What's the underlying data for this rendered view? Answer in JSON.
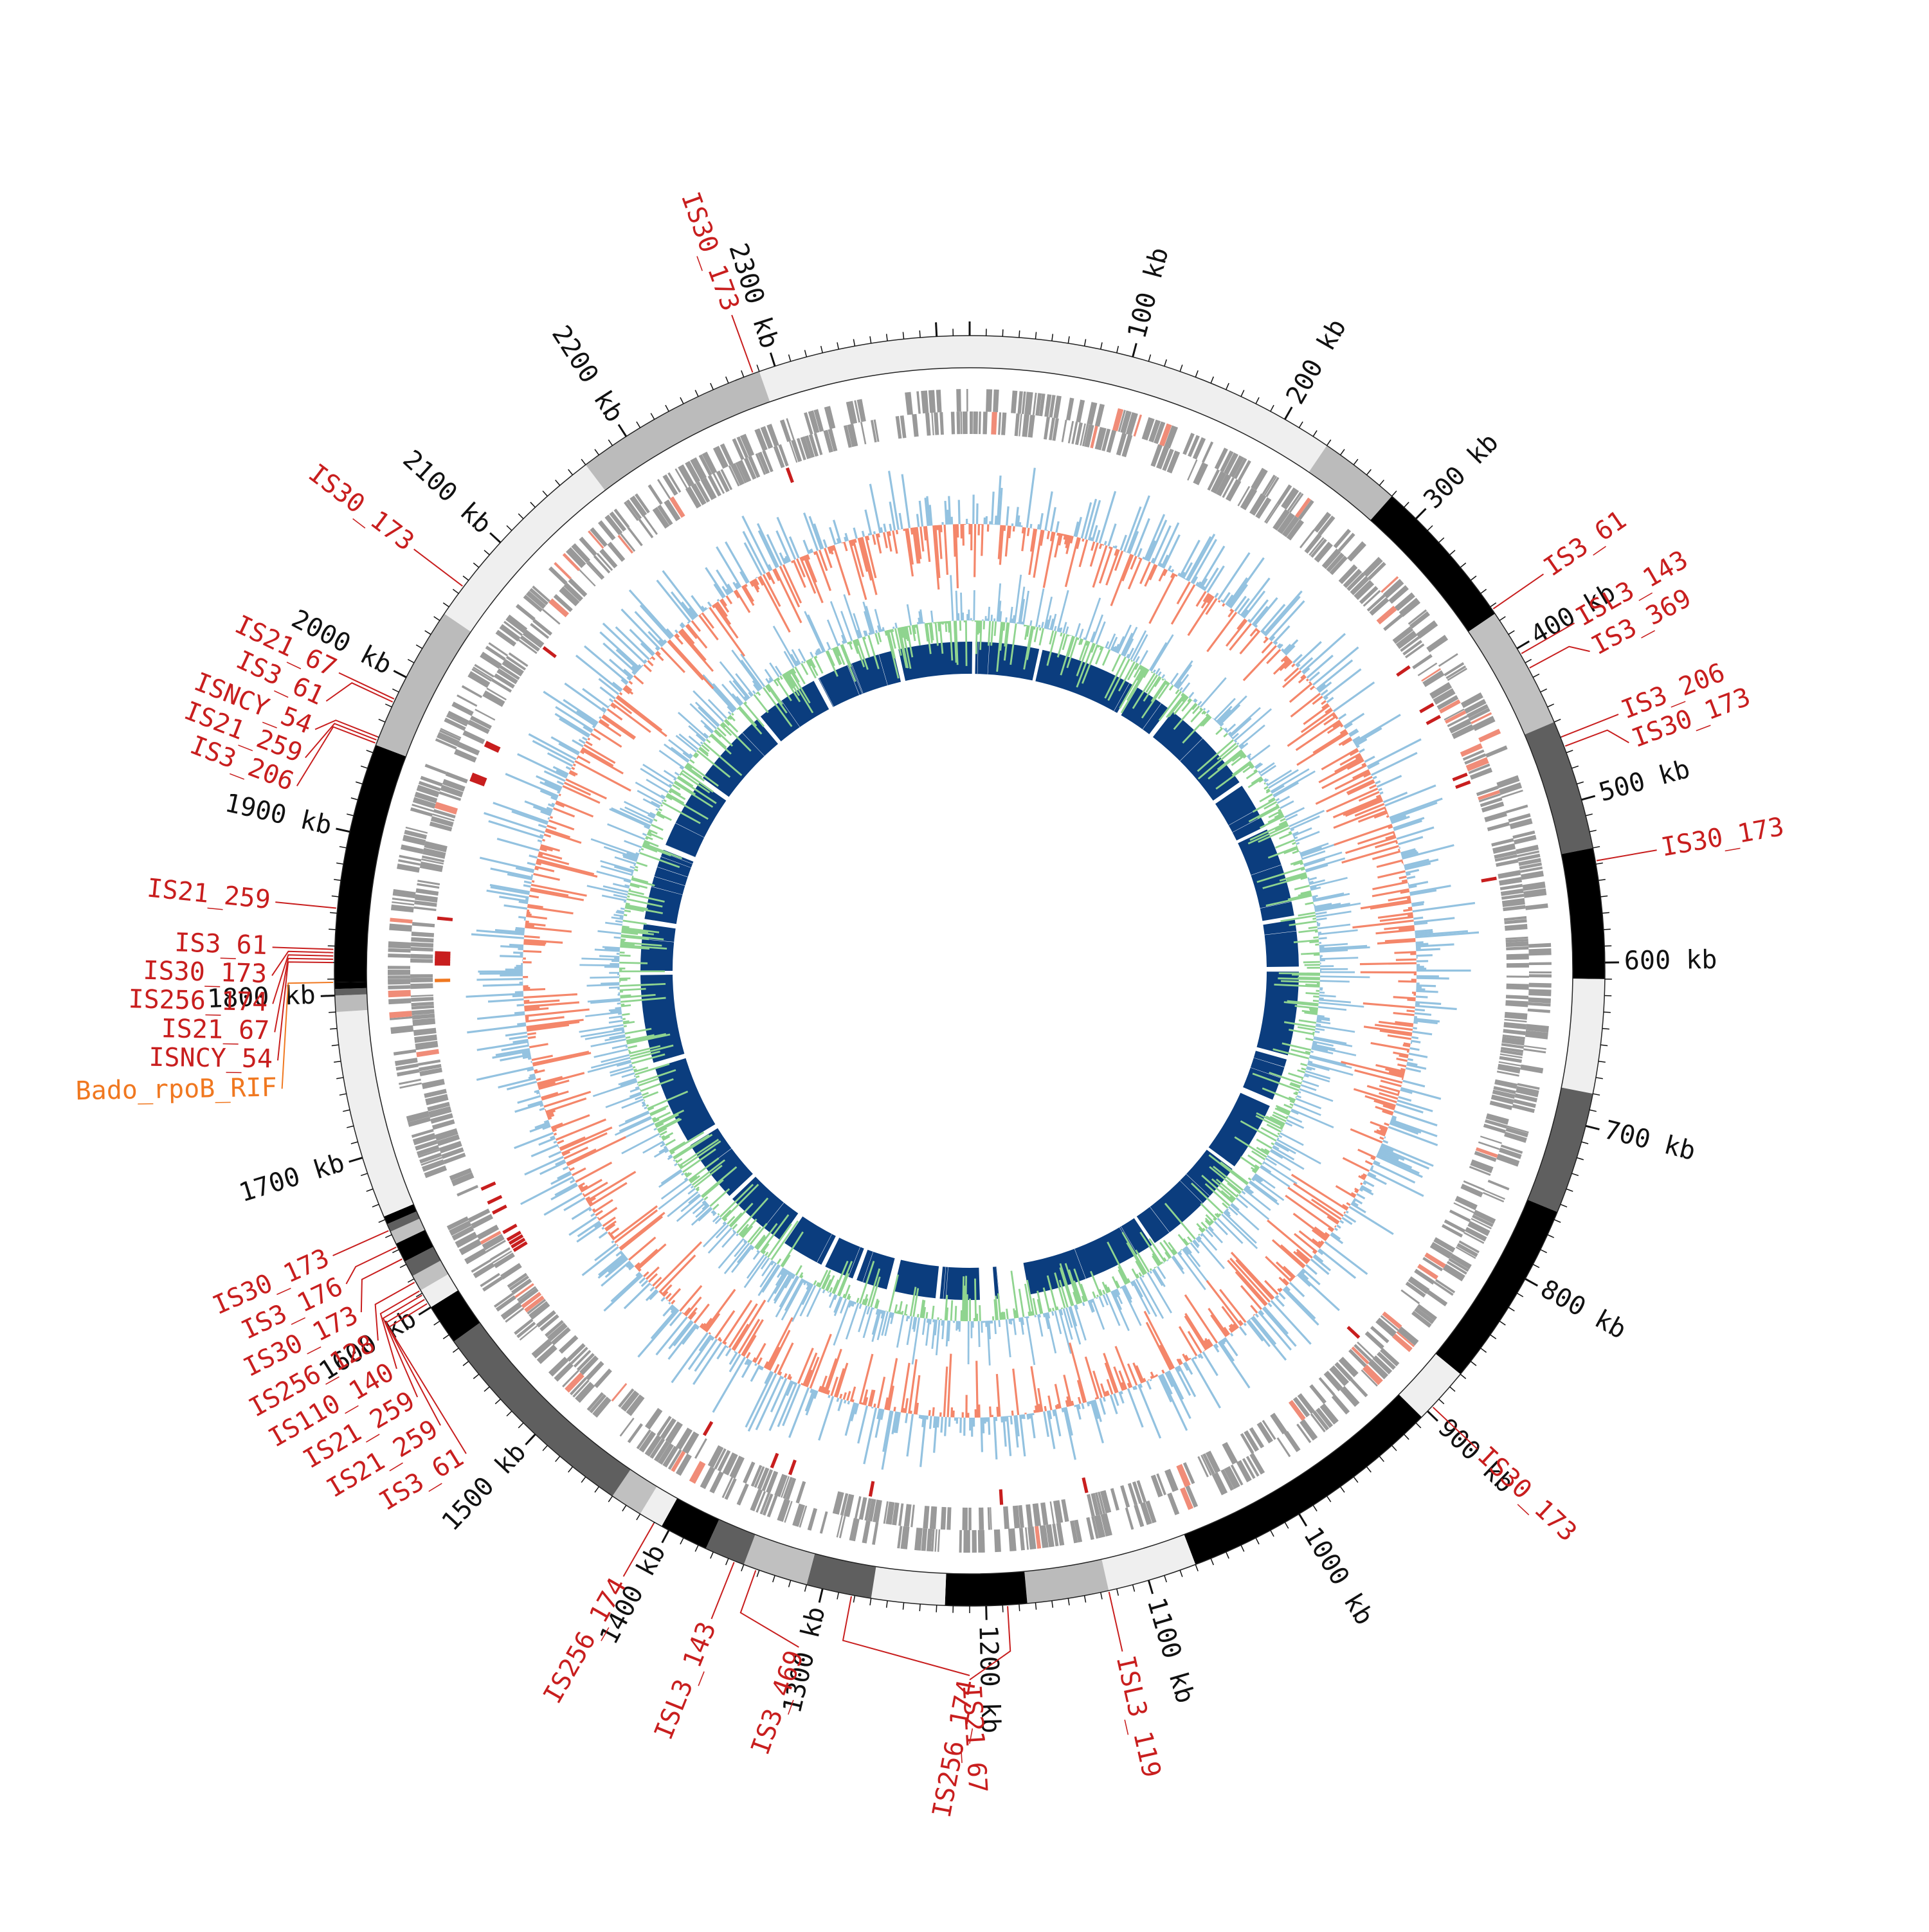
{
  "genome": {
    "total_kb": 2420,
    "tick_step_kb": 100
  },
  "colors": {
    "is_element": "#c81e1e",
    "resistance_gene": "#f07820",
    "cds": "#999999",
    "cds_highlight": "#f08c78",
    "gc_pos": "#93c2e0",
    "gc_neg": "#f4866a",
    "skew_pos": "#93c2e0",
    "skew_neg": "#8fd48f",
    "blast": "#0b3d7e"
  },
  "ticks": [
    {
      "kb": 100,
      "label": "100 kb"
    },
    {
      "kb": 200,
      "label": "200 kb"
    },
    {
      "kb": 300,
      "label": "300 kb"
    },
    {
      "kb": 400,
      "label": "400 kb"
    },
    {
      "kb": 500,
      "label": "500 kb"
    },
    {
      "kb": 600,
      "label": "600 kb"
    },
    {
      "kb": 700,
      "label": "700 kb"
    },
    {
      "kb": 800,
      "label": "800 kb"
    },
    {
      "kb": 900,
      "label": "900 kb"
    },
    {
      "kb": 1000,
      "label": "1000 kb"
    },
    {
      "kb": 1100,
      "label": "1100 kb"
    },
    {
      "kb": 1200,
      "label": "1200 kb"
    },
    {
      "kb": 1300,
      "label": "1300 kb"
    },
    {
      "kb": 1400,
      "label": "1400 kb"
    },
    {
      "kb": 1500,
      "label": "1500 kb"
    },
    {
      "kb": 1600,
      "label": "1600 kb"
    },
    {
      "kb": 1700,
      "label": "1700 kb"
    },
    {
      "kb": 1800,
      "label": "1800 kb"
    },
    {
      "kb": 1900,
      "label": "1900 kb"
    },
    {
      "kb": 2000,
      "label": "2000 kb"
    },
    {
      "kb": 2100,
      "label": "2100 kb"
    },
    {
      "kb": 2200,
      "label": "2200 kb"
    },
    {
      "kb": 2300,
      "label": "2300 kb"
    }
  ],
  "contigs": [
    {
      "start": 0,
      "end": 230,
      "shade": "#efefef"
    },
    {
      "start": 230,
      "end": 280,
      "shade": "#bbbbbb"
    },
    {
      "start": 280,
      "end": 375,
      "shade": "#000000"
    },
    {
      "start": 375,
      "end": 450,
      "shade": "#c0c0c0"
    },
    {
      "start": 450,
      "end": 530,
      "shade": "#5f5f5f"
    },
    {
      "start": 530,
      "end": 610,
      "shade": "#000000"
    },
    {
      "start": 610,
      "end": 680,
      "shade": "#efefef"
    },
    {
      "start": 680,
      "end": 755,
      "shade": "#5f5f5f"
    },
    {
      "start": 755,
      "end": 870,
      "shade": "#000000"
    },
    {
      "start": 870,
      "end": 905,
      "shade": "#efefef"
    },
    {
      "start": 905,
      "end": 1070,
      "shade": "#000000"
    },
    {
      "start": 1070,
      "end": 1125,
      "shade": "#efefef"
    },
    {
      "start": 1125,
      "end": 1175,
      "shade": "#bbbbbb"
    },
    {
      "start": 1175,
      "end": 1225,
      "shade": "#000000"
    },
    {
      "start": 1225,
      "end": 1270,
      "shade": "#efefef"
    },
    {
      "start": 1270,
      "end": 1310,
      "shade": "#5f5f5f"
    },
    {
      "start": 1310,
      "end": 1350,
      "shade": "#c0c0c0"
    },
    {
      "start": 1350,
      "end": 1375,
      "shade": "#5f5f5f"
    },
    {
      "start": 1375,
      "end": 1405,
      "shade": "#000000"
    },
    {
      "start": 1405,
      "end": 1420,
      "shade": "#efefef"
    },
    {
      "start": 1420,
      "end": 1440,
      "shade": "#c0c0c0"
    },
    {
      "start": 1440,
      "end": 1575,
      "shade": "#5f5f5f"
    },
    {
      "start": 1575,
      "end": 1600,
      "shade": "#000000"
    },
    {
      "start": 1600,
      "end": 1612,
      "shade": "#efefef"
    },
    {
      "start": 1612,
      "end": 1622,
      "shade": "#c0c0c0"
    },
    {
      "start": 1622,
      "end": 1632,
      "shade": "#5f5f5f"
    },
    {
      "start": 1632,
      "end": 1644,
      "shade": "#000000"
    },
    {
      "start": 1644,
      "end": 1652,
      "shade": "#c0c0c0"
    },
    {
      "start": 1652,
      "end": 1657,
      "shade": "#5f5f5f"
    },
    {
      "start": 1657,
      "end": 1662,
      "shade": "#000000"
    },
    {
      "start": 1662,
      "end": 1790,
      "shade": "#efefef"
    },
    {
      "start": 1790,
      "end": 1800,
      "shade": "#bbbbbb"
    },
    {
      "start": 1800,
      "end": 1804,
      "shade": "#5f5f5f"
    },
    {
      "start": 1804,
      "end": 1808,
      "shade": "#000000"
    },
    {
      "start": 1808,
      "end": 1955,
      "shade": "#000000"
    },
    {
      "start": 1955,
      "end": 2045,
      "shade": "#bbbbbb"
    },
    {
      "start": 2045,
      "end": 2170,
      "shade": "#efefef"
    },
    {
      "start": 2170,
      "end": 2290,
      "shade": "#bbbbbb"
    },
    {
      "start": 2290,
      "end": 2420,
      "shade": "#efefef"
    }
  ],
  "features": [
    {
      "label": "IS3_61",
      "kb": 372,
      "type": "is"
    },
    {
      "label": "ISL3_143",
      "kb": 404,
      "type": "is"
    },
    {
      "label": "IS3_369",
      "kb": 414,
      "type": "is"
    },
    {
      "label": "IS3_206",
      "kb": 460,
      "type": "is"
    },
    {
      "label": "IS30_173",
      "kb": 466,
      "type": "is"
    },
    {
      "label": "IS30_173",
      "kb": 538,
      "type": "is"
    },
    {
      "label": "IS30_173",
      "kb": 896,
      "type": "is"
    },
    {
      "label": "ISL3_119",
      "kb": 1125,
      "type": "is"
    },
    {
      "label": "IS21_67",
      "kb": 1187,
      "type": "is"
    },
    {
      "label": "IS256_174",
      "kb": 1282,
      "type": "is"
    },
    {
      "label": "IS3_469",
      "kb": 1342,
      "type": "is"
    },
    {
      "label": "ISL3_143",
      "kb": 1356,
      "type": "is"
    },
    {
      "label": "IS256_174",
      "kb": 1410,
      "type": "is"
    },
    {
      "label": "IS30_173",
      "kb": 1653,
      "type": "is"
    },
    {
      "label": "IS3_176",
      "kb": 1642,
      "type": "is"
    },
    {
      "label": "IS30_173",
      "kb": 1634,
      "type": "is"
    },
    {
      "label": "IS256_128",
      "kb": 1618,
      "type": "is"
    },
    {
      "label": "IS110_140",
      "kb": 1612,
      "type": "is"
    },
    {
      "label": "IS21_259",
      "kb": 1609,
      "type": "is"
    },
    {
      "label": "IS21_259",
      "kb": 1606,
      "type": "is"
    },
    {
      "label": "IS3_61",
      "kb": 1603,
      "type": "is"
    },
    {
      "label": "IS21_259",
      "kb": 1853,
      "type": "is"
    },
    {
      "label": "IS3_61",
      "kb": 1828,
      "type": "is"
    },
    {
      "label": "IS30_173",
      "kb": 1826,
      "type": "is"
    },
    {
      "label": "IS256_174",
      "kb": 1824,
      "type": "is"
    },
    {
      "label": "IS21_67",
      "kb": 1822,
      "type": "is"
    },
    {
      "label": "Bado_rpoB_RIF",
      "kb": 1808,
      "type": "gene"
    },
    {
      "label": "ISNCY_54",
      "kb": 1820,
      "type": "is"
    },
    {
      "label": "IS21_67",
      "kb": 1985,
      "type": "is"
    },
    {
      "label": "IS3_61",
      "kb": 1983,
      "type": "is"
    },
    {
      "label": "ISNCY_54",
      "kb": 1960,
      "type": "is"
    },
    {
      "label": "IS21_259",
      "kb": 1958,
      "type": "is"
    },
    {
      "label": "IS3_206",
      "kb": 1956,
      "type": "is"
    },
    {
      "label": "IS30_173",
      "kb": 2065,
      "type": "is"
    },
    {
      "label": "IS30_173",
      "kb": 2286,
      "type": "is"
    }
  ]
}
